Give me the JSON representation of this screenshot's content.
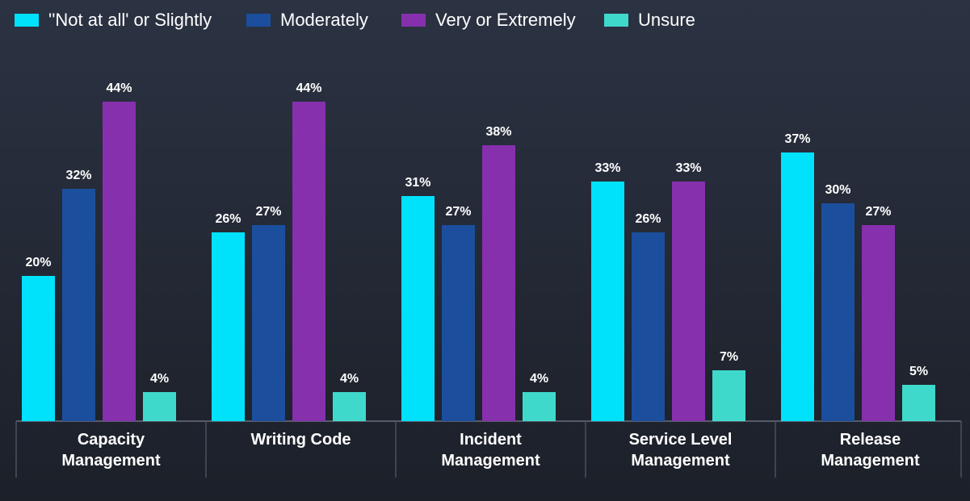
{
  "chart_data": {
    "type": "bar",
    "categories": [
      "Capacity Management",
      "Writing Code",
      "Incident Management",
      "Service Level Management",
      "Release Management"
    ],
    "series": [
      {
        "name": "''Not at all' or Slightly",
        "color": "#00e1fb",
        "values": [
          20,
          26,
          31,
          33,
          37
        ],
        "value_labels": [
          "20%",
          "26%",
          "31%",
          "33%",
          "37%"
        ]
      },
      {
        "name": "Moderately",
        "color": "#1b4f9e",
        "values": [
          32,
          27,
          27,
          26,
          30
        ],
        "value_labels": [
          "32%",
          "27%",
          "27%",
          "26%",
          "30%"
        ]
      },
      {
        "name": "Very or Extremely",
        "color": "#8630ae",
        "values": [
          44,
          44,
          38,
          33,
          27
        ],
        "value_labels": [
          "44%",
          "44%",
          "38%",
          "33%",
          "27%"
        ]
      },
      {
        "name": "Unsure",
        "color": "#3fd9cc",
        "values": [
          4,
          4,
          4,
          7,
          5
        ],
        "value_labels": [
          "4%",
          "4%",
          "4%",
          "7%",
          "5%"
        ]
      }
    ]
  }
}
